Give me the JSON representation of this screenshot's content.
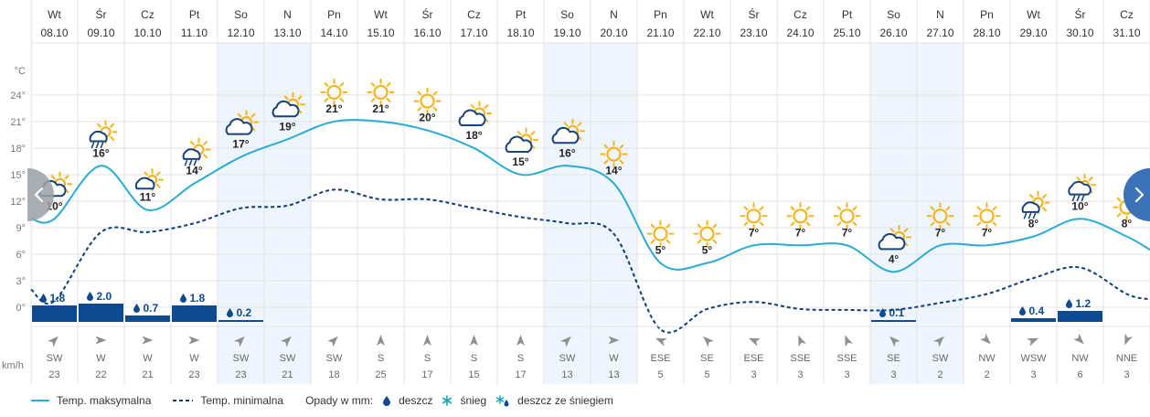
{
  "chart_data": {
    "type": "line",
    "y_axis": {
      "unit_label": "°C",
      "ticks": [
        "24°",
        "21°",
        "18°",
        "15°",
        "12°",
        "9°",
        "6°",
        "3°",
        "0°"
      ],
      "ylim": [
        -3,
        27
      ]
    },
    "wind_unit_label": "km/h",
    "days": [
      {
        "dow": "Wt",
        "date": "08.10",
        "max": 10,
        "min": 0.7,
        "icon": "cloud-sun-icon",
        "rain": 1.8,
        "wind_dir": "SW",
        "wind_speed": 23,
        "weekend": false
      },
      {
        "dow": "Śr",
        "date": "09.10",
        "max": 16,
        "min": 8.5,
        "icon": "sun-cloud-rain-icon",
        "rain": 2.0,
        "wind_dir": "W",
        "wind_speed": 22,
        "weekend": false
      },
      {
        "dow": "Cz",
        "date": "10.10",
        "max": 11,
        "min": 8.5,
        "icon": "cloud-sun-small-icon",
        "rain": 0.7,
        "wind_dir": "W",
        "wind_speed": 21,
        "weekend": false
      },
      {
        "dow": "Pt",
        "date": "11.10",
        "max": 14,
        "min": 9.5,
        "icon": "sun-cloud-rain-icon",
        "rain": 1.8,
        "wind_dir": "W",
        "wind_speed": 23,
        "weekend": false
      },
      {
        "dow": "So",
        "date": "12.10",
        "max": 17,
        "min": 11.2,
        "icon": "cloud-sun-icon",
        "rain": 0.2,
        "wind_dir": "SW",
        "wind_speed": 23,
        "weekend": true
      },
      {
        "dow": "N",
        "date": "13.10",
        "max": 19,
        "min": 11.5,
        "icon": "cloud-sun-icon",
        "rain": null,
        "wind_dir": "SW",
        "wind_speed": 21,
        "weekend": true
      },
      {
        "dow": "Pn",
        "date": "14.10",
        "max": 21,
        "min": 13.3,
        "icon": "sun-icon",
        "rain": null,
        "wind_dir": "SW",
        "wind_speed": 18,
        "weekend": false
      },
      {
        "dow": "Wt",
        "date": "15.10",
        "max": 21,
        "min": 12.2,
        "icon": "sun-icon",
        "rain": null,
        "wind_dir": "S",
        "wind_speed": 25,
        "weekend": false
      },
      {
        "dow": "Śr",
        "date": "16.10",
        "max": 20,
        "min": 12.2,
        "icon": "sun-icon",
        "rain": null,
        "wind_dir": "S",
        "wind_speed": 17,
        "weekend": false
      },
      {
        "dow": "Cz",
        "date": "17.10",
        "max": 18,
        "min": 11.2,
        "icon": "cloud-sun-icon",
        "rain": null,
        "wind_dir": "S",
        "wind_speed": 15,
        "weekend": false
      },
      {
        "dow": "Pt",
        "date": "18.10",
        "max": 15,
        "min": 10.2,
        "icon": "cloud-sun-icon",
        "rain": null,
        "wind_dir": "S",
        "wind_speed": 17,
        "weekend": false
      },
      {
        "dow": "So",
        "date": "19.10",
        "max": 16,
        "min": 9.5,
        "icon": "cloud-sun-icon",
        "rain": null,
        "wind_dir": "SW",
        "wind_speed": 13,
        "weekend": true
      },
      {
        "dow": "N",
        "date": "20.10",
        "max": 14,
        "min": 8.3,
        "icon": "sun-icon",
        "rain": null,
        "wind_dir": "W",
        "wind_speed": 13,
        "weekend": true
      },
      {
        "dow": "Pn",
        "date": "21.10",
        "max": 5,
        "min": -2.5,
        "icon": "sun-icon",
        "rain": null,
        "wind_dir": "ESE",
        "wind_speed": 5,
        "weekend": false
      },
      {
        "dow": "Wt",
        "date": "22.10",
        "max": 5,
        "min": -0.2,
        "icon": "sun-icon",
        "rain": null,
        "wind_dir": "SE",
        "wind_speed": 5,
        "weekend": false
      },
      {
        "dow": "Śr",
        "date": "23.10",
        "max": 7,
        "min": 0.6,
        "icon": "sun-icon",
        "rain": null,
        "wind_dir": "ESE",
        "wind_speed": 3,
        "weekend": false
      },
      {
        "dow": "Cz",
        "date": "24.10",
        "max": 7,
        "min": -0.2,
        "icon": "sun-icon",
        "rain": null,
        "wind_dir": "SSE",
        "wind_speed": 3,
        "weekend": false
      },
      {
        "dow": "Pt",
        "date": "25.10",
        "max": 7,
        "min": -0.3,
        "icon": "sun-icon",
        "rain": null,
        "wind_dir": "SSE",
        "wind_speed": 3,
        "weekend": false
      },
      {
        "dow": "So",
        "date": "26.10",
        "max": 4,
        "min": -0.3,
        "icon": "cloud-sun-icon",
        "rain": 0.1,
        "wind_dir": "SE",
        "wind_speed": 3,
        "weekend": true
      },
      {
        "dow": "N",
        "date": "27.10",
        "max": 7,
        "min": 0.5,
        "icon": "sun-icon",
        "rain": null,
        "wind_dir": "SW",
        "wind_speed": 2,
        "weekend": true
      },
      {
        "dow": "Pn",
        "date": "28.10",
        "max": 7,
        "min": 1.5,
        "icon": "sun-icon",
        "rain": null,
        "wind_dir": "NW",
        "wind_speed": 2,
        "weekend": false
      },
      {
        "dow": "Wt",
        "date": "29.10",
        "max": 8,
        "min": 3.3,
        "icon": "sun-cloud-rain-icon",
        "rain": 0.4,
        "wind_dir": "WSW",
        "wind_speed": 3,
        "weekend": false
      },
      {
        "dow": "Śr",
        "date": "30.10",
        "max": 10,
        "min": 4.5,
        "icon": "cloud-rain-icon",
        "rain": 1.2,
        "wind_dir": "NW",
        "wind_speed": 6,
        "weekend": false
      },
      {
        "dow": "Cz",
        "date": "31.10",
        "max": 8,
        "min": 1.5,
        "icon": "sun-icon",
        "rain": null,
        "wind_dir": "NNE",
        "wind_speed": 3,
        "weekend": false
      }
    ],
    "legend": {
      "max_label": "Temp. maksymalna",
      "min_label": "Temp. minimalna",
      "precip_label": "Opady w mm:",
      "rain_label": "deszcz",
      "snow_label": "śnieg",
      "mix_label": "deszcz ze śniegiem"
    },
    "colors": {
      "max_line": "#29abd4",
      "min_line": "#0d3e78",
      "rain_bar": "#0d4a8f",
      "weekend_bg": "#eef5fc",
      "grid": "#e3e3e3",
      "sun": "#f5b31e",
      "cloud": "#17427a",
      "snow": "#1aa3b8",
      "nav_button": "#9aa0a6",
      "nav_button_right": "#3c72b8"
    }
  }
}
